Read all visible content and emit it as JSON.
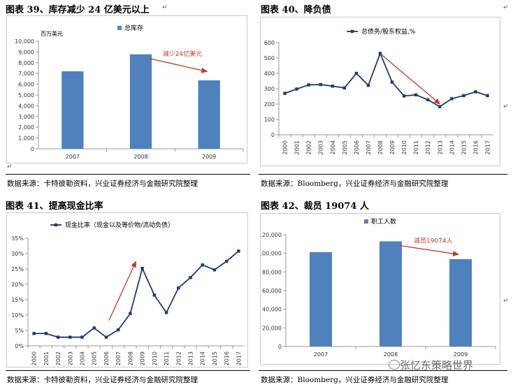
{
  "figures": [
    {
      "title": "图表 39、库存减少 24 亿美元以上",
      "source": "数据来源：卡特彼勒资料，兴业证券经济与金融研究院整理"
    },
    {
      "title": "图表 40、降负债",
      "source": "数据来源：Bloomberg，兴业证券经济与金融研究院整理"
    },
    {
      "title": "图表 41、提高现金比率",
      "source": "数据来源：卡特彼勒资料，兴业证券经济与金融研究院整理"
    },
    {
      "title": "图表 42、裁员 19074 人",
      "source": "数据来源：Bloomberg，兴业证券经济与金融研究院整理"
    }
  ],
  "watermark": "张忆东策略世界",
  "chart_data": [
    {
      "type": "bar",
      "unit_label": "百万美元",
      "series": [
        {
          "name": "总库存",
          "values": [
            7200,
            8780,
            6360
          ]
        }
      ],
      "categories": [
        "2007",
        "2008",
        "2009"
      ],
      "ylim": [
        0,
        10000
      ],
      "yticks": [
        0,
        1000,
        2000,
        3000,
        4000,
        5000,
        6000,
        7000,
        8000,
        9000,
        10000
      ],
      "ytick_labels": [
        "0",
        "1,000",
        "2,000",
        "3,000",
        "4,000",
        "5,000",
        "6,000",
        "7,000",
        "8,000",
        "9,000",
        "10,000"
      ],
      "annotation": "减少24亿美元",
      "colors": {
        "bar": "#4f81bd",
        "arrow": "#c0392b"
      },
      "grid": false,
      "legend": "top"
    },
    {
      "type": "line",
      "series": [
        {
          "name": "总债务/股东权益,%",
          "values": [
            270,
            298,
            325,
            327,
            317,
            305,
            400,
            322,
            530,
            343,
            253,
            260,
            228,
            183,
            235,
            255,
            280,
            255
          ]
        }
      ],
      "categories": [
        "2000",
        "2001",
        "2002",
        "2003",
        "2004",
        "2005",
        "2006",
        "2007",
        "2008",
        "2009",
        "2010",
        "2011",
        "2012",
        "2013",
        "2014",
        "2015",
        "2016",
        "2017"
      ],
      "ylim": [
        0,
        600
      ],
      "yticks": [
        0,
        100,
        200,
        300,
        400,
        500,
        600
      ],
      "ytick_labels": [
        "0",
        "100",
        "200",
        "300",
        "400",
        "500",
        "600"
      ],
      "colors": {
        "line": "#1f3a6e",
        "arrow": "#c0392b"
      },
      "grid": false,
      "legend": "top"
    },
    {
      "type": "line",
      "series": [
        {
          "name": "现金比率（现金以及等价物/流动负债）",
          "values": [
            4.0,
            4.0,
            2.8,
            2.8,
            2.8,
            5.8,
            2.8,
            5.2,
            10.5,
            25.2,
            16.5,
            10.8,
            18.8,
            22.2,
            26.3,
            24.7,
            27.5,
            30.8
          ]
        }
      ],
      "categories": [
        "2000",
        "2001",
        "2002",
        "2003",
        "2004",
        "2005",
        "2006",
        "2007",
        "2008",
        "2009",
        "2010",
        "2011",
        "2012",
        "2013",
        "2014",
        "2015",
        "2016",
        "2017"
      ],
      "ylim": [
        0,
        35
      ],
      "yticks": [
        0,
        5,
        10,
        15,
        20,
        25,
        30,
        35
      ],
      "ytick_labels": [
        "0%",
        "5%",
        "10%",
        "15%",
        "20%",
        "25%",
        "30%",
        "35%"
      ],
      "colors": {
        "line": "#1f3a6e",
        "arrow": "#c0392b"
      },
      "grid": false,
      "legend": "top"
    },
    {
      "type": "bar",
      "series": [
        {
          "name": "职工人数",
          "values": [
            101300,
            112900,
            93800
          ]
        }
      ],
      "categories": [
        "2007",
        "2008",
        "2009"
      ],
      "ylim": [
        0,
        120000
      ],
      "yticks": [
        0,
        20000,
        40000,
        60000,
        80000,
        100000,
        120000
      ],
      "ytick_labels": [
        "0",
        "20,000",
        "40,000",
        "60,000",
        "80,000",
        "100,000",
        "120,000"
      ],
      "annotation": "减员19074人",
      "colors": {
        "bar": "#4f81bd",
        "arrow": "#c0392b"
      },
      "grid": false,
      "legend": "top"
    }
  ]
}
